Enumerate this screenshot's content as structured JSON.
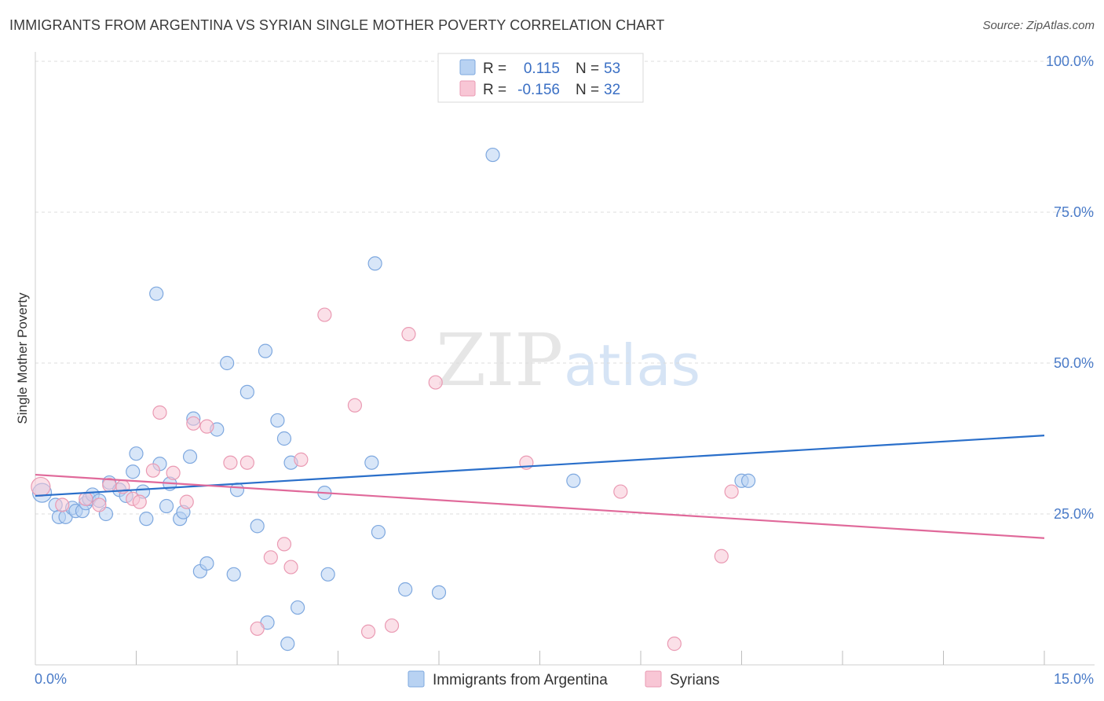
{
  "header": {
    "title": "IMMIGRANTS FROM ARGENTINA VS SYRIAN SINGLE MOTHER POVERTY CORRELATION CHART",
    "source": "Source: ZipAtlas.com"
  },
  "watermark": {
    "zip": "ZIP",
    "atlas": "atlas"
  },
  "legend": {
    "rows": [
      {
        "r_label": "R =",
        "r_value": "0.115",
        "n_label": "N =",
        "n_value": "53",
        "color": "#a9c8ef"
      },
      {
        "r_label": "R =",
        "r_value": "-0.156",
        "n_label": "N =",
        "n_value": "32",
        "color": "#f4b8cb"
      }
    ]
  },
  "colors": {
    "blue_fill": "#b8d2f2",
    "blue_stroke": "#7ea8df",
    "blue_line": "#2a6fca",
    "pink_fill": "#f8c6d5",
    "pink_stroke": "#ea9ab3",
    "pink_line": "#e0699a",
    "tick_text": "#4a7bc8"
  },
  "chart_data": {
    "type": "scatter",
    "title": "IMMIGRANTS FROM ARGENTINA VS SYRIAN SINGLE MOTHER POVERTY CORRELATION CHART",
    "xlabel": "",
    "ylabel": "Single Mother Poverty",
    "xlim": [
      0,
      15
    ],
    "ylim": [
      0,
      100
    ],
    "x_ticks": [
      {
        "value": 0,
        "label": "0.0%"
      },
      {
        "value": 15,
        "label": "15.0%"
      }
    ],
    "y_ticks": [
      {
        "value": 25,
        "label": "25.0%"
      },
      {
        "value": 50,
        "label": "50.0%"
      },
      {
        "value": 75,
        "label": "75.0%"
      },
      {
        "value": 100,
        "label": "100.0%"
      }
    ],
    "grid": true,
    "legend_position": "top-center",
    "series": [
      {
        "name": "Immigrants from Argentina",
        "color": "#a9c8ef",
        "trend": {
          "x": [
            0,
            15
          ],
          "y": [
            28.0,
            38.0
          ]
        },
        "points": [
          [
            0.1,
            28.5
          ],
          [
            0.3,
            26.5
          ],
          [
            0.35,
            24.5
          ],
          [
            0.45,
            24.5
          ],
          [
            0.55,
            26.0
          ],
          [
            0.6,
            25.5
          ],
          [
            0.7,
            25.5
          ],
          [
            0.75,
            26.8
          ],
          [
            0.8,
            27.5
          ],
          [
            0.85,
            28.2
          ],
          [
            0.95,
            27.2
          ],
          [
            1.05,
            25.0
          ],
          [
            1.1,
            30.2
          ],
          [
            1.25,
            29.0
          ],
          [
            1.35,
            28.0
          ],
          [
            1.45,
            32.0
          ],
          [
            1.5,
            35.0
          ],
          [
            1.6,
            28.7
          ],
          [
            1.65,
            24.2
          ],
          [
            1.8,
            61.5
          ],
          [
            1.85,
            33.3
          ],
          [
            1.95,
            26.3
          ],
          [
            2.0,
            30.0
          ],
          [
            2.15,
            24.2
          ],
          [
            2.2,
            25.3
          ],
          [
            2.3,
            34.5
          ],
          [
            2.35,
            40.8
          ],
          [
            2.45,
            15.5
          ],
          [
            2.55,
            16.8
          ],
          [
            2.7,
            39.0
          ],
          [
            2.85,
            50.0
          ],
          [
            2.95,
            15.0
          ],
          [
            3.0,
            29.0
          ],
          [
            3.15,
            45.2
          ],
          [
            3.3,
            23.0
          ],
          [
            3.42,
            52.0
          ],
          [
            3.45,
            7.0
          ],
          [
            3.6,
            40.5
          ],
          [
            3.7,
            37.5
          ],
          [
            3.75,
            3.5
          ],
          [
            3.8,
            33.5
          ],
          [
            3.9,
            9.5
          ],
          [
            4.3,
            28.5
          ],
          [
            4.35,
            15.0
          ],
          [
            5.0,
            33.5
          ],
          [
            5.05,
            66.5
          ],
          [
            5.1,
            22.0
          ],
          [
            5.5,
            12.5
          ],
          [
            6.0,
            12.0
          ],
          [
            6.8,
            84.5
          ],
          [
            8.0,
            30.5
          ],
          [
            10.5,
            30.5
          ],
          [
            10.6,
            30.5
          ]
        ]
      },
      {
        "name": "Syrians",
        "color": "#f4b8cb",
        "trend": {
          "x": [
            0,
            15
          ],
          "y": [
            31.5,
            21.0
          ]
        },
        "points": [
          [
            0.08,
            29.5
          ],
          [
            0.4,
            26.5
          ],
          [
            0.75,
            27.5
          ],
          [
            0.95,
            26.5
          ],
          [
            1.1,
            29.8
          ],
          [
            1.3,
            29.5
          ],
          [
            1.45,
            27.5
          ],
          [
            1.55,
            27.0
          ],
          [
            1.75,
            32.2
          ],
          [
            1.85,
            41.8
          ],
          [
            2.05,
            31.8
          ],
          [
            2.25,
            27.0
          ],
          [
            2.35,
            40.0
          ],
          [
            2.55,
            39.5
          ],
          [
            2.9,
            33.5
          ],
          [
            3.15,
            33.5
          ],
          [
            3.3,
            6.0
          ],
          [
            3.5,
            17.8
          ],
          [
            3.7,
            20.0
          ],
          [
            3.8,
            16.2
          ],
          [
            3.95,
            34.0
          ],
          [
            4.3,
            58.0
          ],
          [
            4.75,
            43.0
          ],
          [
            4.95,
            5.5
          ],
          [
            5.3,
            6.5
          ],
          [
            5.55,
            54.8
          ],
          [
            5.95,
            46.8
          ],
          [
            7.3,
            33.5
          ],
          [
            8.7,
            28.7
          ],
          [
            9.5,
            3.5
          ],
          [
            10.2,
            18.0
          ],
          [
            10.35,
            28.7
          ]
        ]
      }
    ]
  }
}
